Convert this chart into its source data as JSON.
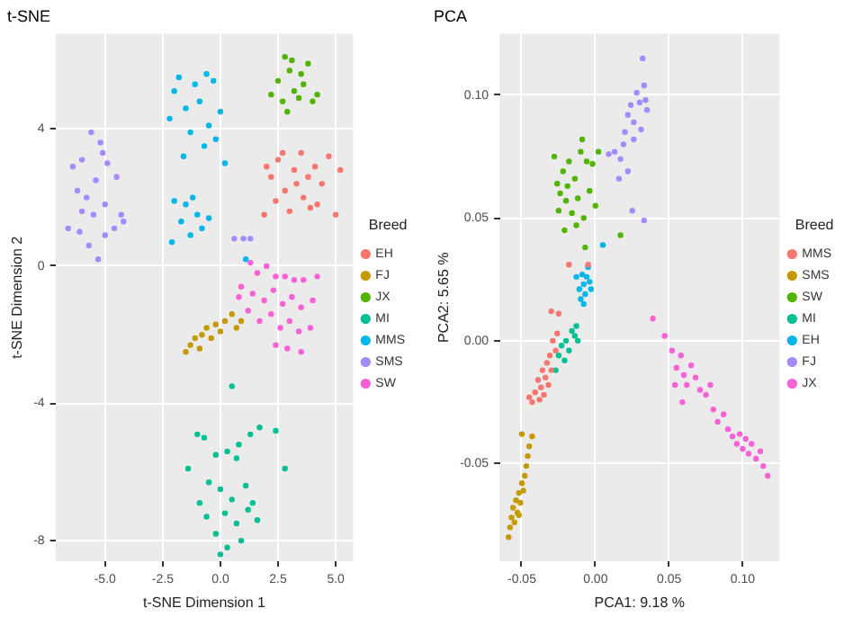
{
  "chart_data": [
    {
      "type": "scatter",
      "title": "t-SNE",
      "xlabel": "t-SNE Dimension 1",
      "ylabel": "t-SNE Dimension 2",
      "legend_title": "Breed",
      "legend": "right",
      "grid": true,
      "marker": "circle",
      "xlim": [
        -7.15,
        5.75
      ],
      "ylim": [
        -8.6,
        6.77
      ],
      "xticks": [
        {
          "value": -5,
          "label": "-5.0"
        },
        {
          "value": -2.5,
          "label": "-2.5"
        },
        {
          "value": 0,
          "label": "0.0"
        },
        {
          "value": 2.5,
          "label": "2.5"
        },
        {
          "value": 5,
          "label": "5.0"
        }
      ],
      "yticks": [
        -8,
        -4,
        0,
        4
      ],
      "series": [
        {
          "name": "EH",
          "color": "#f8766d",
          "x": [
            1.9,
            2.2,
            2.5,
            2.8,
            3.0,
            3.2,
            3.5,
            3.6,
            3.9,
            4.1,
            4.4,
            4.7,
            5.0,
            5.2,
            2.4,
            3.3,
            2.0,
            3.8,
            4.2,
            2.7
          ],
          "values": [
            1.5,
            2.6,
            3.1,
            2.2,
            1.6,
            2.8,
            3.3,
            2.0,
            1.7,
            2.9,
            2.4,
            3.2,
            1.5,
            2.8,
            1.9,
            2.4,
            2.9,
            2.6,
            1.8,
            3.3
          ]
        },
        {
          "name": "FJ",
          "color": "#c49a00",
          "x": [
            -1.5,
            -1.3,
            -1.1,
            -0.9,
            -0.8,
            -0.6,
            -0.4,
            -0.2,
            0.0,
            0.2,
            0.5,
            0.7,
            0.9
          ],
          "values": [
            -2.5,
            -2.3,
            -2.1,
            -2.4,
            -2.0,
            -1.8,
            -2.1,
            -1.7,
            -1.9,
            -1.6,
            -1.4,
            -1.8,
            -1.6
          ]
        },
        {
          "name": "JX",
          "color": "#53b400",
          "x": [
            2.2,
            2.5,
            2.8,
            2.9,
            3.0,
            3.2,
            3.4,
            3.6,
            3.8,
            4.0,
            4.2,
            2.7,
            3.1,
            3.5
          ],
          "values": [
            5.0,
            5.4,
            6.1,
            4.5,
            5.7,
            5.1,
            4.9,
            5.3,
            5.9,
            4.8,
            5.0,
            4.8,
            6.0,
            5.6
          ]
        },
        {
          "name": "MI",
          "color": "#00c094",
          "x": [
            0.5,
            -1.0,
            -0.7,
            0.3,
            0.8,
            1.3,
            1.7,
            2.4,
            2.8,
            -1.4,
            -0.2,
            0.7,
            -0.5,
            0.0,
            0.5,
            1.1,
            1.4,
            -0.9,
            0.2,
            0.7,
            1.6,
            -0.2,
            0.3,
            0.9,
            0.0,
            1.2,
            -0.6
          ],
          "values": [
            -3.5,
            -4.9,
            -5.0,
            -5.4,
            -5.2,
            -4.9,
            -4.7,
            -4.8,
            -5.9,
            -5.9,
            -5.5,
            -5.6,
            -6.3,
            -6.5,
            -6.8,
            -6.4,
            -6.9,
            -6.9,
            -7.2,
            -7.5,
            -7.4,
            -7.8,
            -8.2,
            -8.0,
            -8.4,
            -7.1,
            -7.3
          ]
        },
        {
          "name": "MMS",
          "color": "#00b6eb",
          "x": [
            -2.2,
            -2.0,
            -1.8,
            -1.5,
            -1.3,
            -1.1,
            -0.9,
            -0.7,
            -0.5,
            -0.3,
            -0.2,
            0.0,
            -1.6,
            0.2,
            -0.6,
            -2.0,
            -1.7,
            -1.5,
            -1.3,
            -1.0,
            -0.8,
            -0.5,
            -2.1,
            -1.2,
            1.1
          ],
          "values": [
            4.3,
            5.1,
            5.5,
            4.6,
            3.9,
            5.3,
            4.8,
            3.5,
            4.1,
            5.4,
            3.7,
            4.5,
            3.2,
            3.0,
            5.6,
            1.9,
            1.3,
            1.8,
            0.9,
            1.5,
            1.1,
            1.4,
            0.7,
            2.0,
            0.2
          ]
        },
        {
          "name": "SMS",
          "color": "#a58aff",
          "x": [
            -6.4,
            -6.0,
            -5.6,
            -5.2,
            -4.9,
            -4.5,
            -6.2,
            -5.8,
            -5.4,
            -5.0,
            -4.3,
            -6.6,
            -6.1,
            -5.7,
            -5.3,
            -5.0,
            -4.6,
            -4.2,
            -5.5,
            -6.0,
            -5.1,
            0.6,
            1.0,
            1.3
          ],
          "values": [
            2.9,
            3.1,
            3.9,
            3.6,
            3.0,
            2.6,
            2.2,
            2.0,
            2.5,
            1.8,
            1.5,
            1.1,
            1.0,
            0.6,
            0.2,
            0.9,
            1.1,
            1.3,
            1.5,
            1.6,
            3.3,
            0.8,
            0.8,
            0.8
          ]
        },
        {
          "name": "SW",
          "color": "#fb61d7",
          "x": [
            1.3,
            1.6,
            2.0,
            2.4,
            2.8,
            3.2,
            3.6,
            4.2,
            0.9,
            1.4,
            1.9,
            2.3,
            2.7,
            3.1,
            3.5,
            4.0,
            1.2,
            1.7,
            2.2,
            2.6,
            3.0,
            3.4,
            3.9,
            2.4,
            3.5,
            2.9,
            0.8
          ],
          "values": [
            0.1,
            -0.2,
            0.0,
            -0.3,
            -0.3,
            -0.4,
            -0.4,
            -0.3,
            -0.6,
            -0.8,
            -1.0,
            -0.7,
            -1.1,
            -0.9,
            -1.2,
            -1.0,
            -1.3,
            -1.6,
            -1.4,
            -1.8,
            -1.6,
            -1.9,
            -1.8,
            -2.3,
            -2.5,
            -2.4,
            -0.9
          ]
        }
      ]
    },
    {
      "type": "scatter",
      "title": "PCA",
      "xlabel": "PCA1: 9.18 %",
      "ylabel": "PCA2: 5.65 %",
      "legend_title": "Breed",
      "legend": "right",
      "grid": true,
      "marker": "circle",
      "xlim": [
        -0.0652,
        0.125
      ],
      "ylim": [
        -0.0898,
        0.125
      ],
      "xticks": [
        -0.05,
        {
          "value": 0,
          "label": "0.00"
        },
        0.05,
        {
          "value": 0.1,
          "label": "0.10"
        }
      ],
      "yticks": [
        -0.05,
        {
          "value": 0,
          "label": "0.00"
        },
        0.05,
        {
          "value": 0.1,
          "label": "0.10"
        }
      ],
      "series": [
        {
          "name": "MMS",
          "color": "#f8766d",
          "x": [
            -0.043,
            -0.041,
            -0.039,
            -0.038,
            -0.037,
            -0.036,
            -0.035,
            -0.034,
            -0.033,
            -0.032,
            -0.031,
            -0.03,
            -0.029,
            -0.027,
            -0.026,
            -0.03,
            -0.025,
            -0.018,
            -0.005,
            -0.045
          ],
          "values": [
            -0.025,
            -0.021,
            -0.016,
            -0.024,
            -0.019,
            -0.012,
            -0.022,
            -0.015,
            -0.009,
            -0.018,
            -0.006,
            -0.012,
            0.0,
            -0.004,
            0.003,
            0.012,
            0.011,
            0.031,
            0.031,
            -0.023
          ]
        },
        {
          "name": "SMS",
          "color": "#c49a00",
          "x": [
            -0.059,
            -0.058,
            -0.057,
            -0.056,
            -0.055,
            -0.054,
            -0.053,
            -0.052,
            -0.051,
            -0.05,
            -0.049,
            -0.048,
            -0.047,
            -0.046,
            -0.045,
            -0.05,
            -0.043,
            -0.052
          ],
          "values": [
            -0.08,
            -0.076,
            -0.072,
            -0.068,
            -0.074,
            -0.065,
            -0.07,
            -0.062,
            -0.066,
            -0.058,
            -0.061,
            -0.055,
            -0.051,
            -0.047,
            -0.043,
            -0.038,
            -0.039,
            -0.071
          ]
        },
        {
          "name": "SW",
          "color": "#53b400",
          "x": [
            -0.028,
            -0.026,
            -0.024,
            -0.022,
            -0.02,
            -0.019,
            -0.018,
            -0.016,
            -0.014,
            -0.012,
            -0.01,
            -0.008,
            -0.006,
            -0.004,
            -0.002,
            0.0,
            0.002,
            -0.025,
            -0.021,
            -0.013,
            -0.007,
            0.017,
            -0.009
          ],
          "values": [
            0.075,
            0.064,
            0.06,
            0.069,
            0.057,
            0.063,
            0.073,
            0.052,
            0.066,
            0.058,
            0.077,
            0.05,
            0.073,
            0.061,
            0.072,
            0.055,
            0.077,
            0.053,
            0.045,
            0.047,
            0.038,
            0.043,
            0.082
          ]
        },
        {
          "name": "MI",
          "color": "#00c094",
          "x": [
            -0.027,
            -0.025,
            -0.023,
            -0.021,
            -0.02,
            -0.018,
            -0.016,
            -0.014,
            -0.013,
            -0.012
          ],
          "values": [
            -0.012,
            -0.006,
            -0.002,
            -0.008,
            0.0,
            -0.004,
            0.004,
            0.002,
            0.006,
            0.0
          ]
        },
        {
          "name": "EH",
          "color": "#00b6eb",
          "x": [
            -0.013,
            -0.011,
            -0.01,
            -0.009,
            -0.008,
            -0.007,
            -0.006,
            -0.005,
            -0.004,
            -0.003,
            -0.008,
            0.005
          ],
          "values": [
            0.026,
            0.021,
            0.017,
            0.027,
            0.023,
            0.019,
            0.026,
            0.03,
            0.024,
            0.021,
            0.015,
            0.039
          ]
        },
        {
          "name": "FJ",
          "color": "#a58aff",
          "x": [
            0.009,
            0.013,
            0.017,
            0.02,
            0.022,
            0.024,
            0.026,
            0.028,
            0.03,
            0.031,
            0.033,
            0.034,
            0.035,
            0.032,
            0.026,
            0.022,
            0.016,
            0.025,
            0.033,
            0.019
          ],
          "values": [
            0.076,
            0.077,
            0.074,
            0.085,
            0.092,
            0.096,
            0.089,
            0.101,
            0.097,
            0.086,
            0.104,
            0.098,
            0.094,
            0.115,
            0.082,
            0.069,
            0.066,
            0.053,
            0.049,
            0.08
          ]
        },
        {
          "name": "JX",
          "color": "#fb61d7",
          "x": [
            0.039,
            0.047,
            0.052,
            0.055,
            0.058,
            0.06,
            0.062,
            0.065,
            0.068,
            0.071,
            0.075,
            0.08,
            0.083,
            0.087,
            0.09,
            0.093,
            0.096,
            0.098,
            0.1,
            0.102,
            0.104,
            0.106,
            0.109,
            0.112,
            0.114,
            0.117,
            0.059,
            0.078,
            0.054
          ],
          "values": [
            0.009,
            0.002,
            -0.004,
            -0.011,
            -0.006,
            -0.014,
            -0.018,
            -0.01,
            -0.015,
            -0.02,
            -0.022,
            -0.028,
            -0.033,
            -0.03,
            -0.036,
            -0.039,
            -0.042,
            -0.038,
            -0.044,
            -0.04,
            -0.046,
            -0.042,
            -0.048,
            -0.045,
            -0.051,
            -0.055,
            -0.025,
            -0.018,
            -0.018
          ]
        }
      ]
    }
  ]
}
